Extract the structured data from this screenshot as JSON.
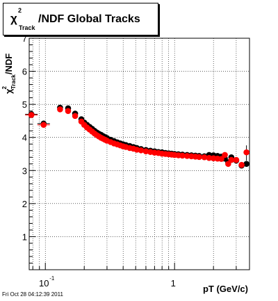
{
  "title": {
    "chi": "χ",
    "sup": "2",
    "sub": "Track",
    "rest": "/NDF  Global Tracks"
  },
  "ylabel": {
    "chi": "χ",
    "sup": "2",
    "sub": "Track",
    "rest": "/NDF"
  },
  "footer": "Fri Oct 28 04:12:39 2011",
  "chart_data": {
    "type": "scatter",
    "title": "χ²_Track/NDF  Global Tracks",
    "xlabel": "pT (GeV/c)",
    "ylabel": "χ²_Track/NDF",
    "xscale": "log",
    "xlim": [
      0.075,
      3.8
    ],
    "ylim": [
      0,
      7
    ],
    "y_ticks": [
      1,
      2,
      3,
      4,
      5,
      6,
      7
    ],
    "x_tick_labels": [
      {
        "base": "10",
        "exp": "-1",
        "value": 0.1
      },
      {
        "base": "1",
        "exp": "",
        "value": 1
      }
    ],
    "grid": true,
    "series": [
      {
        "color": "#000000",
        "points": [
          [
            0.078,
            4.7
          ],
          [
            0.097,
            4.42
          ],
          [
            0.13,
            4.9
          ],
          [
            0.15,
            4.88
          ],
          [
            0.17,
            4.72
          ],
          [
            0.19,
            4.55
          ],
          [
            0.2,
            4.45
          ],
          [
            0.21,
            4.38
          ],
          [
            0.22,
            4.32
          ],
          [
            0.23,
            4.26
          ],
          [
            0.24,
            4.2
          ],
          [
            0.25,
            4.15
          ],
          [
            0.26,
            4.11
          ],
          [
            0.27,
            4.08
          ],
          [
            0.28,
            4.04
          ],
          [
            0.29,
            4.01
          ],
          [
            0.3,
            3.98
          ],
          [
            0.32,
            3.93
          ],
          [
            0.34,
            3.89
          ],
          [
            0.36,
            3.85
          ],
          [
            0.38,
            3.82
          ],
          [
            0.4,
            3.79
          ],
          [
            0.42,
            3.77
          ],
          [
            0.45,
            3.74
          ],
          [
            0.48,
            3.71
          ],
          [
            0.51,
            3.68
          ],
          [
            0.55,
            3.65
          ],
          [
            0.6,
            3.62
          ],
          [
            0.65,
            3.6
          ],
          [
            0.7,
            3.58
          ],
          [
            0.75,
            3.56
          ],
          [
            0.8,
            3.55
          ],
          [
            0.85,
            3.53
          ],
          [
            0.9,
            3.52
          ],
          [
            0.95,
            3.51
          ],
          [
            1.0,
            3.5
          ],
          [
            1.07,
            3.49
          ],
          [
            1.15,
            3.48
          ],
          [
            1.25,
            3.47
          ],
          [
            1.35,
            3.46
          ],
          [
            1.45,
            3.45
          ],
          [
            1.55,
            3.44
          ],
          [
            1.7,
            3.43
          ],
          [
            1.85,
            3.47
          ],
          [
            2.0,
            3.46
          ],
          [
            2.15,
            3.44
          ],
          [
            2.3,
            3.42
          ],
          [
            2.45,
            3.36
          ],
          [
            2.6,
            3.25
          ],
          [
            2.75,
            3.4
          ],
          [
            3.0,
            3.3
          ],
          [
            3.3,
            3.15
          ],
          [
            3.6,
            3.2
          ]
        ]
      },
      {
        "color": "#ff0000",
        "points": [
          [
            0.078,
            4.68
          ],
          [
            0.097,
            4.38
          ],
          [
            0.13,
            4.85
          ],
          [
            0.15,
            4.8
          ],
          [
            0.17,
            4.65
          ],
          [
            0.19,
            4.48
          ],
          [
            0.2,
            4.38
          ],
          [
            0.21,
            4.3
          ],
          [
            0.22,
            4.24
          ],
          [
            0.23,
            4.18
          ],
          [
            0.24,
            4.12
          ],
          [
            0.25,
            4.07
          ],
          [
            0.26,
            4.03
          ],
          [
            0.27,
            3.99
          ],
          [
            0.28,
            3.96
          ],
          [
            0.29,
            3.93
          ],
          [
            0.3,
            3.9
          ],
          [
            0.32,
            3.86
          ],
          [
            0.34,
            3.82
          ],
          [
            0.36,
            3.79
          ],
          [
            0.38,
            3.76
          ],
          [
            0.4,
            3.73
          ],
          [
            0.42,
            3.71
          ],
          [
            0.45,
            3.68
          ],
          [
            0.48,
            3.66
          ],
          [
            0.51,
            3.63
          ],
          [
            0.55,
            3.61
          ],
          [
            0.6,
            3.58
          ],
          [
            0.65,
            3.56
          ],
          [
            0.7,
            3.54
          ],
          [
            0.75,
            3.53
          ],
          [
            0.8,
            3.51
          ],
          [
            0.85,
            3.5
          ],
          [
            0.9,
            3.49
          ],
          [
            0.95,
            3.48
          ],
          [
            1.0,
            3.47
          ],
          [
            1.07,
            3.46
          ],
          [
            1.15,
            3.45
          ],
          [
            1.25,
            3.44
          ],
          [
            1.35,
            3.43
          ],
          [
            1.45,
            3.42
          ],
          [
            1.55,
            3.41
          ],
          [
            1.7,
            3.4
          ],
          [
            1.85,
            3.38
          ],
          [
            2.0,
            3.37
          ],
          [
            2.15,
            3.36
          ],
          [
            2.3,
            3.35
          ],
          [
            2.45,
            3.47
          ],
          [
            2.6,
            3.2
          ],
          [
            2.75,
            3.32
          ],
          [
            3.0,
            3.32
          ],
          [
            3.3,
            3.17
          ],
          [
            3.6,
            3.55
          ]
        ]
      }
    ]
  }
}
